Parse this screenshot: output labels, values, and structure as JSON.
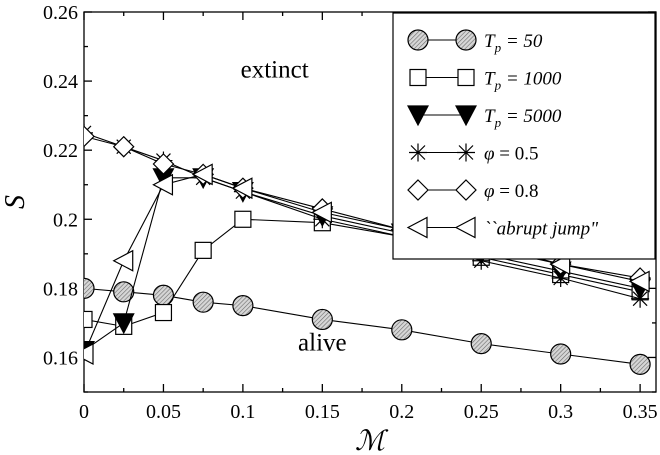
{
  "chart_data": {
    "type": "line",
    "title": "",
    "xlabel": "ℳ",
    "ylabel": "S",
    "xlim": [
      0,
      0.36
    ],
    "ylim": [
      0.15,
      0.26
    ],
    "x_ticks": [
      "0",
      "0.05",
      "0.1",
      "0.15",
      "0.2",
      "0.25",
      "0.3",
      "0.35"
    ],
    "y_ticks": [
      "0.16",
      "0.18",
      "0.2",
      "0.22",
      "0.24",
      "0.26"
    ],
    "x_tick_values": [
      0,
      0.05,
      0.1,
      0.15,
      0.2,
      0.25,
      0.3,
      0.35
    ],
    "y_tick_values": [
      0.16,
      0.18,
      0.2,
      0.22,
      0.24,
      0.26
    ],
    "grid": false,
    "legend_position": "top-right",
    "annotations": [
      {
        "text": "extinct",
        "x": 0.12,
        "y": 0.241
      },
      {
        "text": "alive",
        "x": 0.15,
        "y": 0.162
      }
    ],
    "series": [
      {
        "name": "T_p = 50",
        "legend": {
          "prefix": "T",
          "sub": "p",
          "suffix": " = 50"
        },
        "marker": "circle",
        "x": [
          0,
          0.025,
          0.05,
          0.075,
          0.1,
          0.15,
          0.2,
          0.25,
          0.3,
          0.35
        ],
        "y": [
          0.18,
          0.179,
          0.178,
          0.176,
          0.175,
          0.171,
          0.168,
          0.164,
          0.161,
          0.158
        ]
      },
      {
        "name": "T_p = 1000",
        "legend": {
          "prefix": "T",
          "sub": "p",
          "suffix": " = 1000"
        },
        "marker": "square",
        "x": [
          0,
          0.025,
          0.05,
          0.075,
          0.1,
          0.15,
          0.2,
          0.25,
          0.3,
          0.35
        ],
        "y": [
          0.171,
          0.169,
          0.173,
          0.191,
          0.2,
          0.199,
          0.195,
          0.189,
          0.184,
          0.179
        ]
      },
      {
        "name": "T_p = 5000",
        "legend": {
          "prefix": "T",
          "sub": "p",
          "suffix": " = 5000"
        },
        "marker": "triangle-down-filled",
        "x": [
          0,
          0.025,
          0.05,
          0.075,
          0.1,
          0.15,
          0.2,
          0.25,
          0.3,
          0.35
        ],
        "y": [
          0.162,
          0.17,
          0.212,
          0.212,
          0.208,
          0.201,
          0.196,
          0.19,
          0.185,
          0.18
        ]
      },
      {
        "name": "φ = 0.5",
        "legend": {
          "prefix": "φ",
          "sub": "",
          "suffix": " = 0.5"
        },
        "marker": "asterisk",
        "x": [
          0,
          0.025,
          0.05,
          0.075,
          0.1,
          0.15,
          0.2,
          0.25,
          0.3,
          0.35
        ],
        "y": [
          0.225,
          0.221,
          0.217,
          0.212,
          0.208,
          0.2,
          0.195,
          0.188,
          0.183,
          0.177
        ]
      },
      {
        "name": "φ = 0.8",
        "legend": {
          "prefix": "φ",
          "sub": "",
          "suffix": " = 0.8"
        },
        "marker": "diamond",
        "x": [
          0,
          0.025,
          0.05,
          0.075,
          0.1,
          0.15,
          0.2,
          0.25,
          0.3,
          0.35
        ],
        "y": [
          0.224,
          0.221,
          0.216,
          0.213,
          0.209,
          0.203,
          0.197,
          0.192,
          0.187,
          0.183
        ]
      },
      {
        "name": "``abrupt jump\"",
        "legend": {
          "prefix": "``abrupt jump\"",
          "sub": "",
          "suffix": ""
        },
        "marker": "triangle-left",
        "x": [
          0,
          0.025,
          0.05,
          0.075,
          0.1,
          0.15,
          0.2,
          0.25,
          0.3,
          0.35
        ],
        "y": [
          0.161,
          0.188,
          0.21,
          0.213,
          0.209,
          0.202,
          0.197,
          0.193,
          0.187,
          0.182
        ]
      }
    ]
  }
}
